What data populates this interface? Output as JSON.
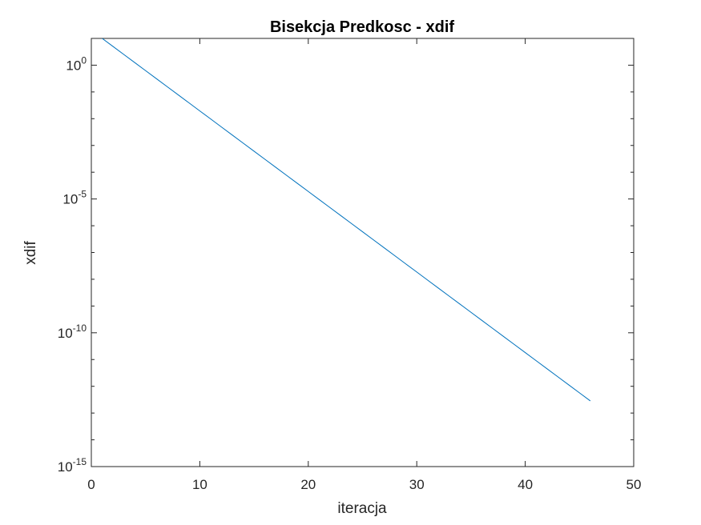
{
  "chart_data": {
    "type": "line",
    "title": "Bisekcja Predkosc - xdif",
    "xlabel": "iteracja",
    "ylabel": "xdif",
    "xlim": [
      0,
      50
    ],
    "ylim": [
      1e-15,
      10.0
    ],
    "yscale": "log",
    "grid": false,
    "legend": "none",
    "x_ticks": [
      0,
      10,
      20,
      30,
      40,
      50
    ],
    "x_tick_labels": [
      "0",
      "10",
      "20",
      "30",
      "40",
      "50"
    ],
    "y_ticks": [
      1e-15,
      1e-10,
      1e-05,
      1.0
    ],
    "y_tick_labels": [
      {
        "base": "10",
        "exp": "-15"
      },
      {
        "base": "10",
        "exp": "-10"
      },
      {
        "base": "10",
        "exp": "-5"
      },
      {
        "base": "10",
        "exp": "0"
      }
    ],
    "series": [
      {
        "color": "#0072BD",
        "x_start": 1,
        "x_end": 46,
        "y_start": 10,
        "ratio": 0.5
      }
    ]
  }
}
